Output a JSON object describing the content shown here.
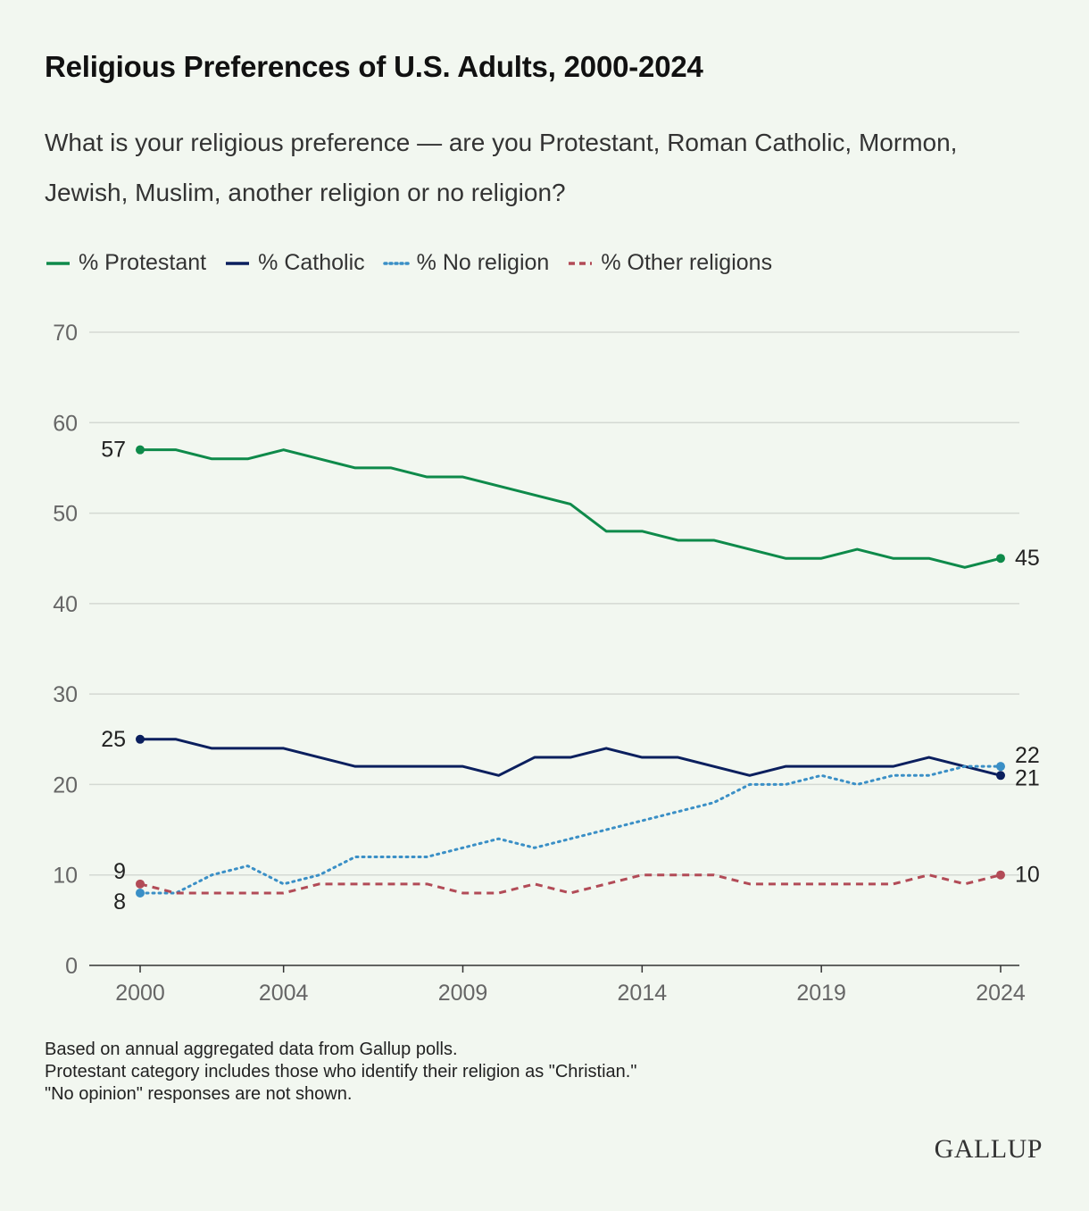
{
  "header": {
    "title": "Religious Preferences of U.S. Adults, 2000-2024",
    "subtitle": "What is your religious preference — are you Protestant, Roman Catholic, Mormon, Jewish, Muslim, another religion or no religion?"
  },
  "legend": [
    {
      "label": "% Protestant",
      "color": "#0e8a4a",
      "style": "solid"
    },
    {
      "label": "% Catholic",
      "color": "#0b1f5e",
      "style": "solid"
    },
    {
      "label": "% No religion",
      "color": "#3a8fc6",
      "style": "dotted"
    },
    {
      "label": "% Other religions",
      "color": "#b24b57",
      "style": "dashed"
    }
  ],
  "chart_data": {
    "type": "line",
    "x": [
      2000,
      2001,
      2002,
      2003,
      2004,
      2005,
      2006,
      2007,
      2008,
      2009,
      2010,
      2011,
      2012,
      2013,
      2014,
      2015,
      2016,
      2017,
      2018,
      2019,
      2020,
      2021,
      2022,
      2023,
      2024
    ],
    "x_tick_labels": [
      "2000",
      "2004",
      "2009",
      "2014",
      "2019",
      "2024"
    ],
    "x_ticks": [
      2000,
      2004,
      2009,
      2014,
      2019,
      2024
    ],
    "y_ticks": [
      0,
      10,
      20,
      30,
      40,
      50,
      60,
      70
    ],
    "ylim": [
      0,
      70
    ],
    "grid": true,
    "legend_position": "top-left",
    "series": [
      {
        "name": "% Protestant",
        "color": "#0e8a4a",
        "style": "solid",
        "values": [
          57,
          57,
          56,
          56,
          57,
          56,
          55,
          55,
          54,
          54,
          53,
          52,
          51,
          48,
          48,
          47,
          47,
          46,
          45,
          45,
          46,
          45,
          45,
          44,
          45
        ],
        "start_label": "57",
        "end_label": "45"
      },
      {
        "name": "% Catholic",
        "color": "#0b1f5e",
        "style": "solid",
        "values": [
          25,
          25,
          24,
          24,
          24,
          23,
          22,
          22,
          22,
          22,
          21,
          23,
          23,
          24,
          23,
          23,
          22,
          21,
          22,
          22,
          22,
          22,
          23,
          22,
          21
        ],
        "start_label": "25",
        "end_label": "21"
      },
      {
        "name": "% No religion",
        "color": "#3a8fc6",
        "style": "dotted",
        "values": [
          8,
          8,
          10,
          11,
          9,
          10,
          12,
          12,
          12,
          13,
          14,
          13,
          14,
          15,
          16,
          17,
          18,
          20,
          20,
          21,
          20,
          21,
          21,
          22,
          22
        ],
        "start_label": "8",
        "end_label": "22"
      },
      {
        "name": "% Other religions",
        "color": "#b24b57",
        "style": "dashed",
        "values": [
          9,
          8,
          8,
          8,
          8,
          9,
          9,
          9,
          9,
          8,
          8,
          9,
          8,
          9,
          10,
          10,
          10,
          9,
          9,
          9,
          9,
          9,
          10,
          9,
          10
        ],
        "start_label": "9",
        "end_label": "10"
      }
    ]
  },
  "footer": {
    "notes": [
      "Based on annual aggregated data from Gallup polls.",
      "Protestant category includes those who identify their religion as \"Christian.\"",
      "\"No opinion\" responses are not shown."
    ],
    "brand": "GALLUP"
  }
}
